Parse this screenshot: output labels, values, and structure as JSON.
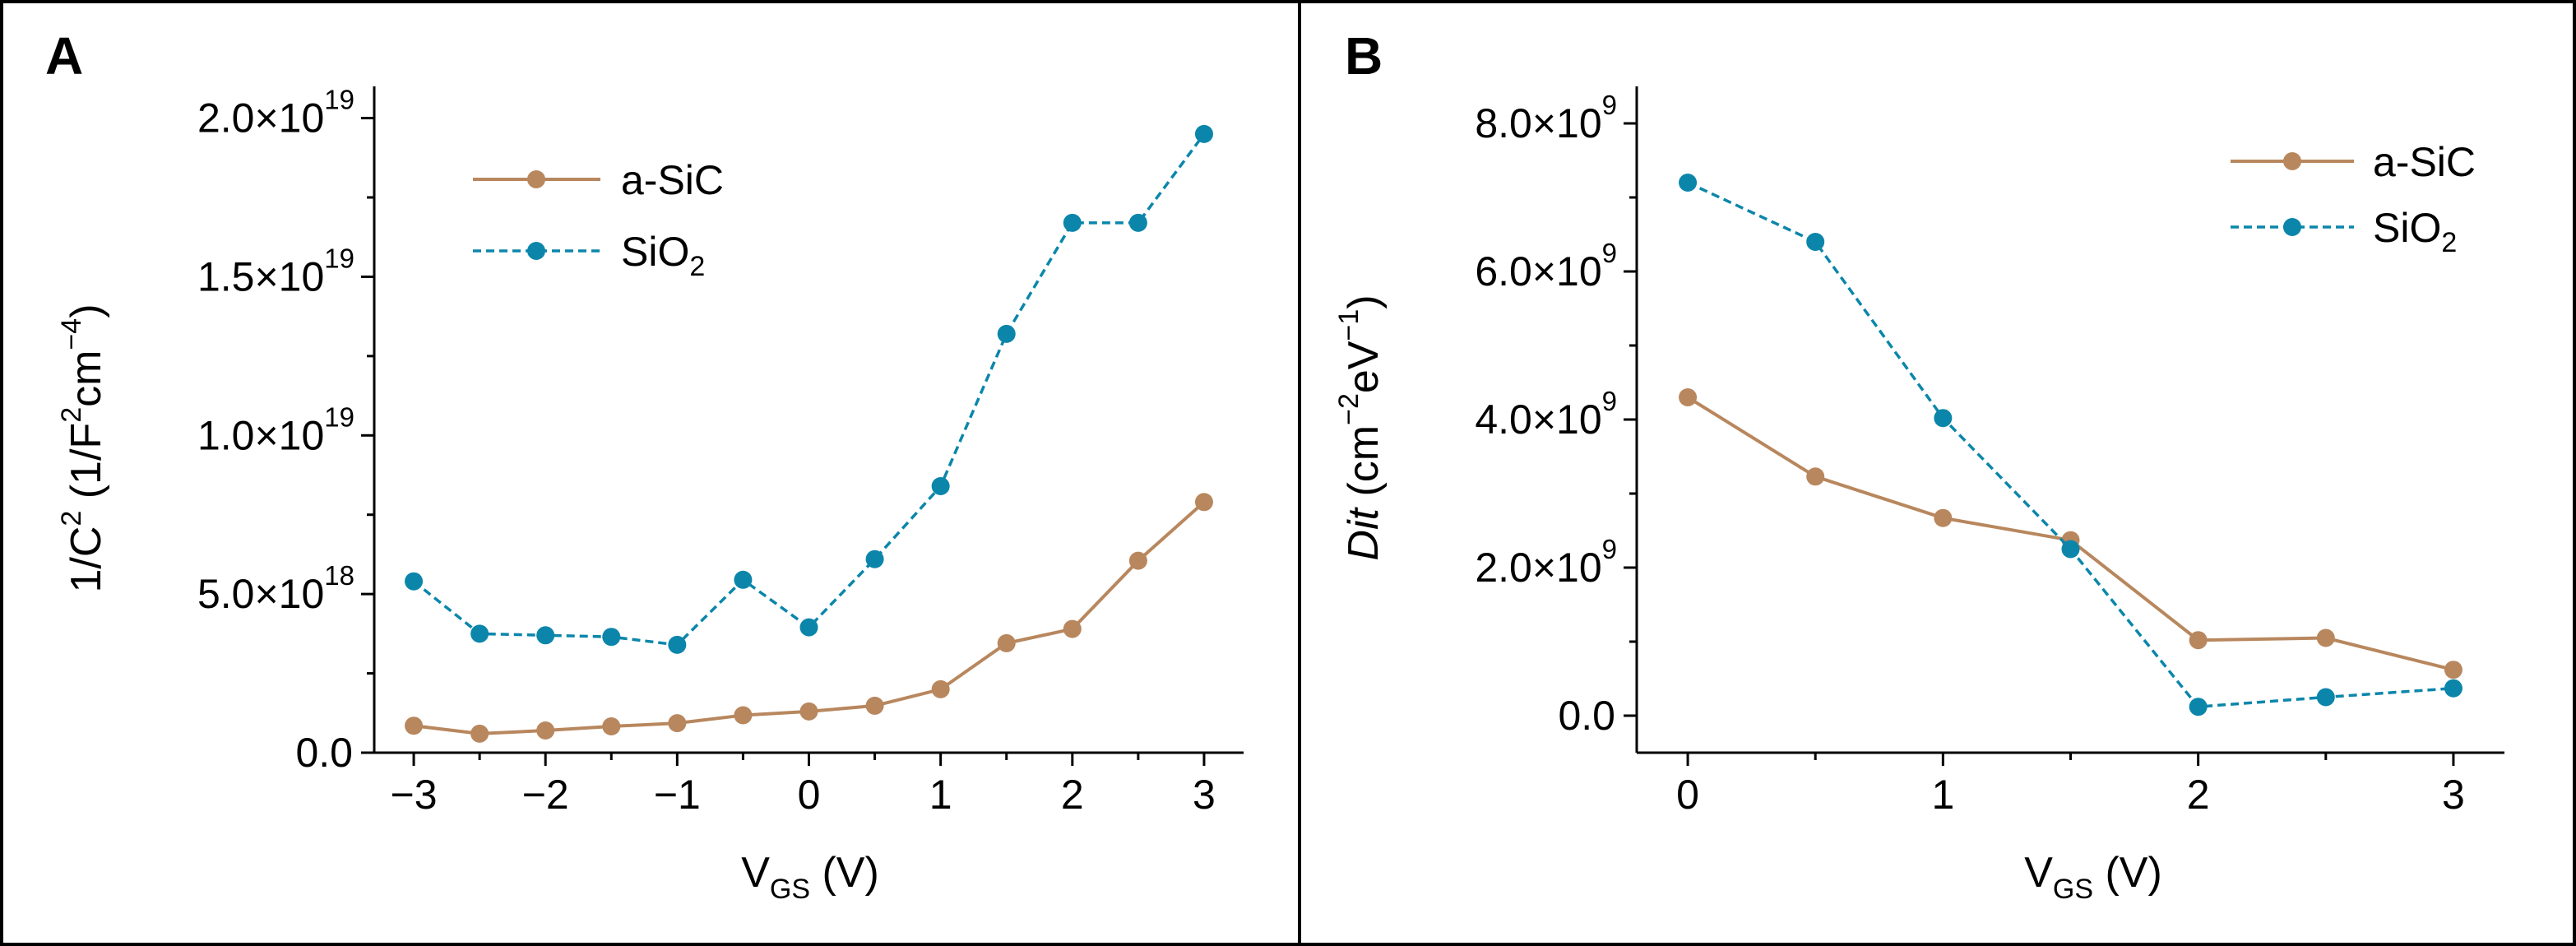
{
  "colors": {
    "a_sic": "#b8875e",
    "sio2": "#0b86aa",
    "frame": "#000000"
  },
  "chart_data": [
    {
      "panel_label": "A",
      "type": "line",
      "x": [
        -3,
        -2.5,
        -2,
        -1.5,
        -1,
        -0.5,
        0,
        0.5,
        1,
        1.5,
        2,
        2.5,
        3
      ],
      "series": [
        {
          "name": "a-SiC",
          "style": "solid",
          "values": [
            8.5e+17,
            6e+17,
            7e+17,
            8.3e+17,
            9.3e+17,
            1.18e+18,
            1.3e+18,
            1.48e+18,
            2e+18,
            3.45e+18,
            3.9e+18,
            6.05e+18,
            7.9e+18
          ]
        },
        {
          "name": "SiO2",
          "style": "dashed",
          "values": [
            5.4e+18,
            3.75e+18,
            3.7e+18,
            3.65e+18,
            3.4e+18,
            5.45e+18,
            3.95e+18,
            6.1e+18,
            8.4e+18,
            1.32e+19,
            1.67e+19,
            1.67e+19,
            1.95e+19
          ]
        }
      ],
      "xlim": [
        -3.3,
        3.3
      ],
      "ylim": [
        0,
        2.1e+19
      ],
      "x_ticks": [
        "−3",
        "−2",
        "−1",
        "0",
        "1",
        "2",
        "3"
      ],
      "y_ticks": [
        {
          "value": 0,
          "mantissa": "0.0",
          "exponent": ""
        },
        {
          "value": 5e+18,
          "mantissa": "5.0×10",
          "exponent": "18"
        },
        {
          "value": 1e+19,
          "mantissa": "1.0×10",
          "exponent": "19"
        },
        {
          "value": 1.5e+19,
          "mantissa": "1.5×10",
          "exponent": "19"
        },
        {
          "value": 2e+19,
          "mantissa": "2.0×10",
          "exponent": "19"
        }
      ],
      "xlabel": {
        "main": "V",
        "sub": "GS",
        "rest": " (V)"
      },
      "ylabel": {
        "p1": "1/C",
        "sup1": "2",
        "p2": " (1/F",
        "sup2": "2",
        "p3": "cm",
        "sup3": "−4",
        "p4": ")"
      },
      "legend": {
        "position": "top-left",
        "entries": [
          "a-SiC",
          "SiO",
          "2"
        ]
      }
    },
    {
      "panel_label": "B",
      "type": "line",
      "x": [
        0,
        0.5,
        1,
        1.5,
        2,
        2.5,
        3
      ],
      "series": [
        {
          "name": "a-SiC",
          "style": "solid",
          "values": [
            4300000000.0,
            3230000000.0,
            2670000000.0,
            2370000000.0,
            1020000000.0,
            1050000000.0,
            620000000.0
          ]
        },
        {
          "name": "SiO2",
          "style": "dashed",
          "values": [
            7200000000.0,
            6400000000.0,
            4020000000.0,
            2250000000.0,
            120000000.0,
            250000000.0,
            370000000.0
          ]
        }
      ],
      "xlim": [
        -0.2,
        3.2
      ],
      "ylim": [
        -500000000.0,
        8500000000.0
      ],
      "x_ticks": [
        "0",
        "1",
        "2",
        "3"
      ],
      "y_ticks": [
        {
          "value": 0,
          "mantissa": "0.0",
          "exponent": ""
        },
        {
          "value": 2000000000.0,
          "mantissa": "2.0×10",
          "exponent": "9"
        },
        {
          "value": 4000000000.0,
          "mantissa": "4.0×10",
          "exponent": "9"
        },
        {
          "value": 6000000000.0,
          "mantissa": "6.0×10",
          "exponent": "9"
        },
        {
          "value": 8000000000.0,
          "mantissa": "8.0×10",
          "exponent": "9"
        }
      ],
      "xlabel": {
        "main": "V",
        "sub": "GS",
        "rest": " (V)"
      },
      "ylabel": {
        "p1": "Dit",
        "p2": " (cm",
        "sup2": "−2",
        "p3": "eV",
        "sup3": "−1",
        "p4": ")"
      },
      "legend": {
        "position": "top-right",
        "entries": [
          "a-SiC",
          "SiO",
          "2"
        ]
      }
    }
  ]
}
